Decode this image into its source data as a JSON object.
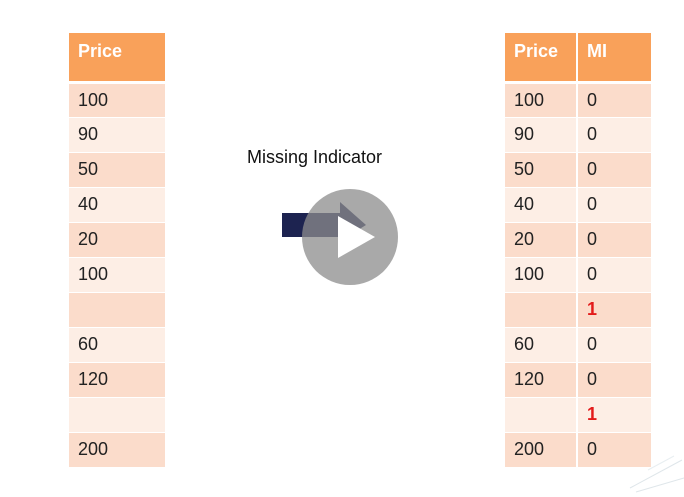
{
  "left_table": {
    "header": "Price",
    "rows": [
      "100",
      "90",
      "50",
      "40",
      "20",
      "100",
      "",
      "60",
      "120",
      "",
      "200"
    ]
  },
  "right_table": {
    "headers": [
      "Price",
      "MI"
    ],
    "rows": [
      [
        "100",
        "0"
      ],
      [
        "90",
        "0"
      ],
      [
        "50",
        "0"
      ],
      [
        "40",
        "0"
      ],
      [
        "20",
        "0"
      ],
      [
        "100",
        "0"
      ],
      [
        "",
        "1"
      ],
      [
        "60",
        "0"
      ],
      [
        "120",
        "0"
      ],
      [
        "",
        "1"
      ],
      [
        "200",
        "0"
      ]
    ]
  },
  "caption": "Missing Indicator",
  "icons": {
    "arrow": "right-arrow-icon",
    "play": "play-icon"
  },
  "colors": {
    "header": "#f9a15a",
    "row_odd": "#fbdccb",
    "row_even": "#fdeee5",
    "missing_flag": "#e31b1b",
    "arrow": "#1d2350"
  }
}
